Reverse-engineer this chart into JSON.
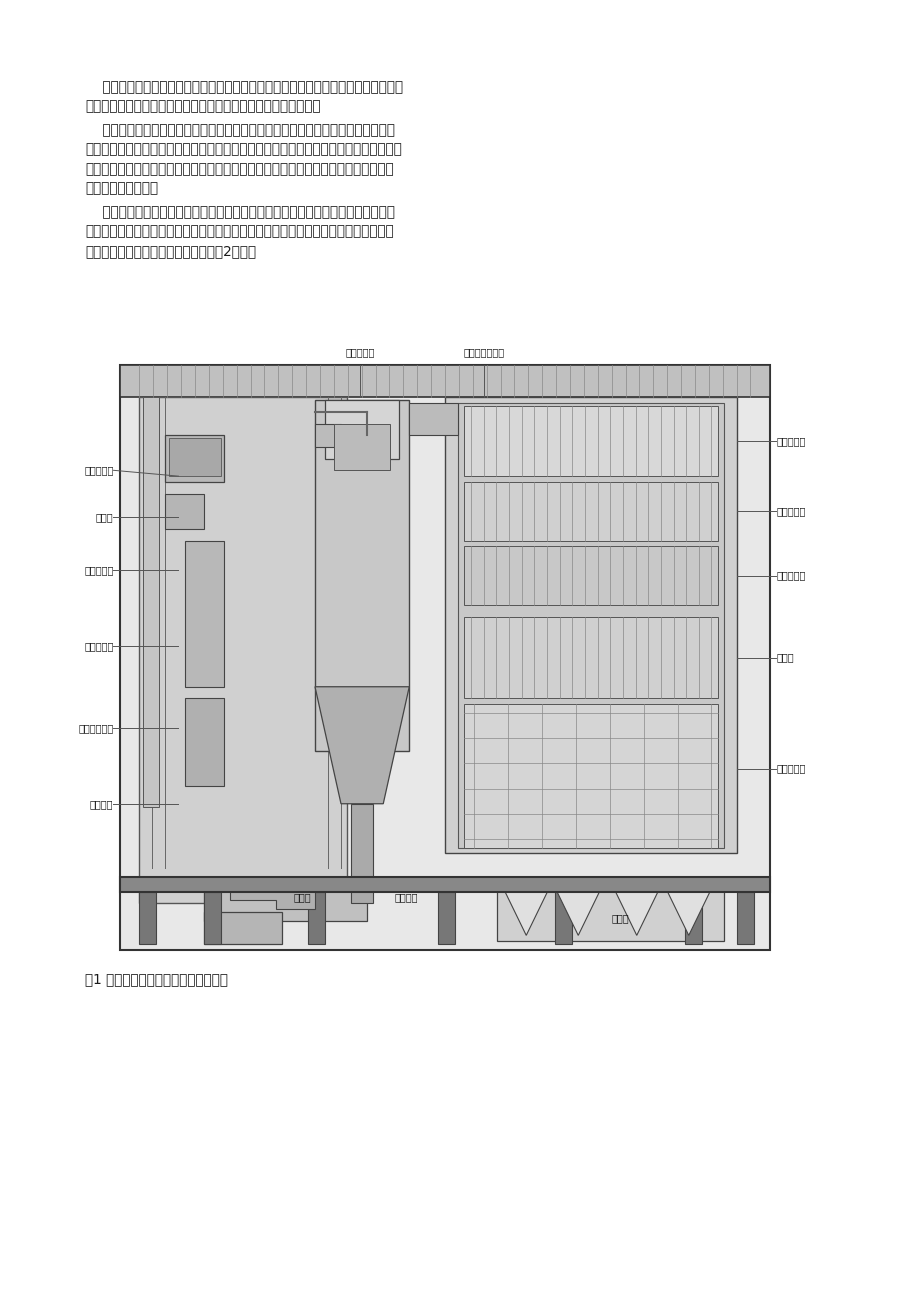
{
  "page_bg": "#ffffff",
  "text_color": "#1a1a1a",
  "para1_lines": [
    "    在机组运行中，若炉膛压力测点发生堵塞现象，会使运行人员错误判断床料的厚度，",
    "导致厂用电量增加，严重时还会造成床料流化不良而使锅炉结焦。"
  ],
  "para2_lines": [
    "    为了防止仪表管堵塞，一般采取的方法是增加防堵取样装置，定期使用压缩空气对",
    "仪表管路进行吹扫，这种方式基本可以防止堵塞。但是由于该装置需要稳定的仪表气源，",
    "操作吹扫过程把握要准，因此，在锅炉的实际运行中，大多数的防堵取样装置常常会成",
    "为闲置没用的装置。"
  ],
  "para3_lines": [
    "    本文根据多个工程运行经验总结出一种防堵取样装置，该装置采用特殊形式防磨、",
    "防堵型测量装置，采用小口径、大倾角防堵型测量取样管，能够避免物料顺着取压管进",
    "入仪表引压管而堵塞测量，其结构如图2所示。"
  ],
  "caption": "图1 超临界循环流化床锅炉本体结构图",
  "top_label1": "旋风分离器",
  "top_label2": "分离器出口烟道",
  "left_labels": [
    "汽水分离器",
    "储水罐",
    "屏式再热器",
    "屏式过热器",
    "分隔墙水冷壁",
    "播煤装置"
  ],
  "right_labels": [
    "中温过热器",
    "低温再热器",
    "低温过热器",
    "省煤器",
    "空气预热器"
  ],
  "bottom_label1": "回料器",
  "bottom_label2": "点火风道",
  "bottom_label3": "冷渣器"
}
